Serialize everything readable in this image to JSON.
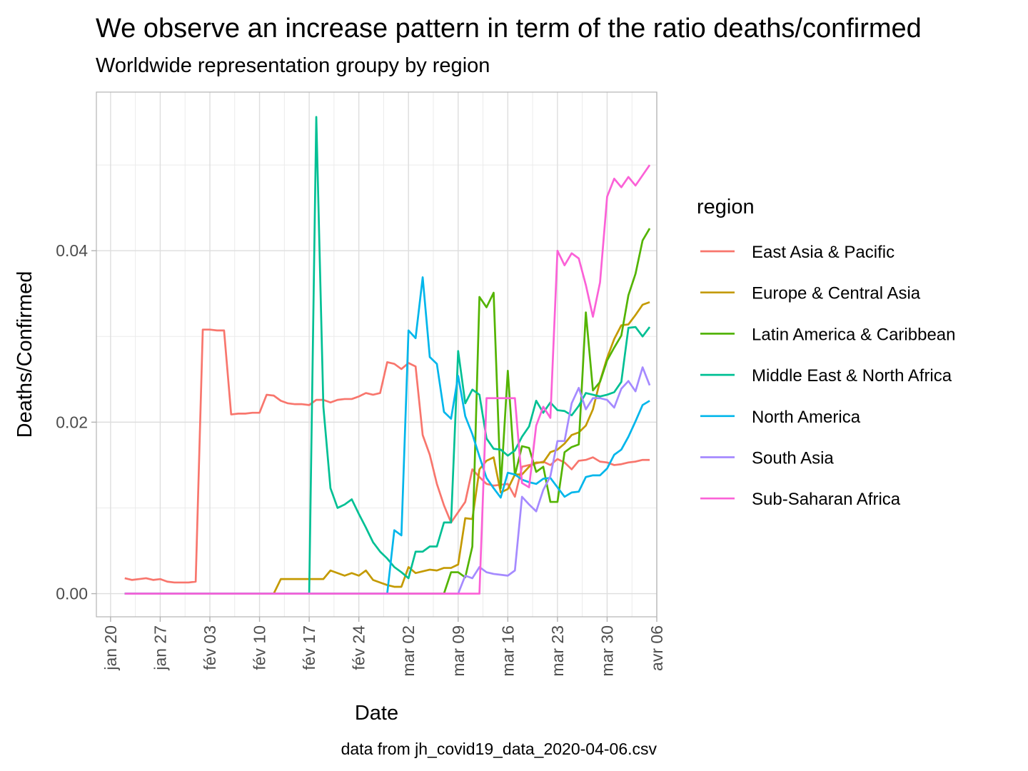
{
  "chart_data": {
    "type": "line",
    "title": "We observe an increase pattern in term of the ratio  deaths/confirmed",
    "subtitle": "Worldwide representation groupy by region",
    "xlabel": "Date",
    "ylabel": "Deaths/Confirmed",
    "caption": "data from jh_covid19_data_2020-04-06.csv",
    "legend_title": "region",
    "legend_position": "right",
    "grid": true,
    "x_type": "date",
    "xlim": [
      "2020-01-18",
      "2020-04-06"
    ],
    "ylim": [
      -0.0027,
      0.0585
    ],
    "x_ticks": [
      {
        "date": "2020-01-20",
        "label": "jan 20"
      },
      {
        "date": "2020-01-27",
        "label": "jan 27"
      },
      {
        "date": "2020-02-03",
        "label": "fév 03"
      },
      {
        "date": "2020-02-10",
        "label": "fév 10"
      },
      {
        "date": "2020-02-17",
        "label": "fév 17"
      },
      {
        "date": "2020-02-24",
        "label": "fév 24"
      },
      {
        "date": "2020-03-02",
        "label": "mar 02"
      },
      {
        "date": "2020-03-09",
        "label": "mar 09"
      },
      {
        "date": "2020-03-16",
        "label": "mar 16"
      },
      {
        "date": "2020-03-23",
        "label": "mar 23"
      },
      {
        "date": "2020-03-30",
        "label": "mar 30"
      },
      {
        "date": "2020-04-06",
        "label": "avr 06"
      }
    ],
    "y_ticks": [
      {
        "value": 0,
        "label": "0.00"
      },
      {
        "value": 0.02,
        "label": "0.02"
      },
      {
        "value": 0.04,
        "label": "0.04"
      }
    ],
    "x": [
      "2020-01-22",
      "2020-01-23",
      "2020-01-24",
      "2020-01-25",
      "2020-01-26",
      "2020-01-27",
      "2020-01-28",
      "2020-01-29",
      "2020-01-30",
      "2020-01-31",
      "2020-02-01",
      "2020-02-02",
      "2020-02-03",
      "2020-02-04",
      "2020-02-05",
      "2020-02-06",
      "2020-02-07",
      "2020-02-08",
      "2020-02-09",
      "2020-02-10",
      "2020-02-11",
      "2020-02-12",
      "2020-02-13",
      "2020-02-14",
      "2020-02-15",
      "2020-02-16",
      "2020-02-17",
      "2020-02-18",
      "2020-02-19",
      "2020-02-20",
      "2020-02-21",
      "2020-02-22",
      "2020-02-23",
      "2020-02-24",
      "2020-02-25",
      "2020-02-26",
      "2020-02-27",
      "2020-02-28",
      "2020-02-29",
      "2020-03-01",
      "2020-03-02",
      "2020-03-03",
      "2020-03-04",
      "2020-03-05",
      "2020-03-06",
      "2020-03-07",
      "2020-03-08",
      "2020-03-09",
      "2020-03-10",
      "2020-03-11",
      "2020-03-12",
      "2020-03-13",
      "2020-03-14",
      "2020-03-15",
      "2020-03-16",
      "2020-03-17",
      "2020-03-18",
      "2020-03-19",
      "2020-03-20",
      "2020-03-21",
      "2020-03-22",
      "2020-03-23",
      "2020-03-24",
      "2020-03-25",
      "2020-03-26",
      "2020-03-27",
      "2020-03-28",
      "2020-03-29",
      "2020-03-30",
      "2020-03-31",
      "2020-04-01",
      "2020-04-02",
      "2020-04-03",
      "2020-04-04",
      "2020-04-05"
    ],
    "series": [
      {
        "name": "East Asia & Pacific",
        "color": "#F8766D",
        "values": [
          0.0018,
          0.0016,
          0.0017,
          0.0018,
          0.0016,
          0.0017,
          0.0014,
          0.0013,
          0.0013,
          0.0013,
          0.0014,
          0.0308,
          0.0308,
          0.0307,
          0.0307,
          0.0209,
          0.021,
          0.021,
          0.0211,
          0.0211,
          0.0232,
          0.0231,
          0.0225,
          0.0222,
          0.0221,
          0.0221,
          0.022,
          0.0226,
          0.0226,
          0.0223,
          0.0226,
          0.0227,
          0.0227,
          0.023,
          0.0234,
          0.0232,
          0.0234,
          0.027,
          0.0268,
          0.0262,
          0.0269,
          0.0265,
          0.0185,
          0.0162,
          0.0128,
          0.0103,
          0.0083,
          0.0095,
          0.0107,
          0.0145,
          0.0136,
          0.0128,
          0.0126,
          0.0127,
          0.0128,
          0.0113,
          0.0148,
          0.015,
          0.0152,
          0.0154,
          0.015,
          0.0157,
          0.0153,
          0.0145,
          0.0155,
          0.0156,
          0.0159,
          0.0154,
          0.0153,
          0.015,
          0.0151,
          0.0153,
          0.0154,
          0.0156,
          0.0156
        ]
      },
      {
        "name": "Europe & Central Asia",
        "color": "#C49A00",
        "values": [
          0,
          0,
          0,
          0,
          0,
          0,
          0,
          0,
          0,
          0,
          0,
          0,
          0,
          0,
          0,
          0,
          0,
          0,
          0,
          0,
          0,
          0,
          0.0017,
          0.0017,
          0.0017,
          0.0017,
          0.0017,
          0.0017,
          0.0017,
          0.0027,
          0.0024,
          0.0021,
          0.0024,
          0.0021,
          0.0027,
          0.0016,
          0.0013,
          0.001,
          0.0008,
          0.0008,
          0.0031,
          0.0024,
          0.0026,
          0.0028,
          0.0027,
          0.003,
          0.003,
          0.0034,
          0.0088,
          0.0087,
          0.0145,
          0.0155,
          0.0159,
          0.0118,
          0.0122,
          0.0139,
          0.0139,
          0.0148,
          0.0153,
          0.0153,
          0.0165,
          0.0168,
          0.0175,
          0.0185,
          0.0188,
          0.0196,
          0.0215,
          0.0248,
          0.0275,
          0.0297,
          0.0313,
          0.0314,
          0.0325,
          0.0337,
          0.034
        ]
      },
      {
        "name": "Latin America & Caribbean",
        "color": "#53B400",
        "values": [
          0,
          0,
          0,
          0,
          0,
          0,
          0,
          0,
          0,
          0,
          0,
          0,
          0,
          0,
          0,
          0,
          0,
          0,
          0,
          0,
          0,
          0,
          0,
          0,
          0,
          0,
          0,
          0,
          0,
          0,
          0,
          0,
          0,
          0,
          0,
          0,
          0,
          0,
          0,
          0,
          0,
          0,
          0,
          0,
          0,
          0,
          0.0025,
          0.0025,
          0.0019,
          0.0055,
          0.0346,
          0.0334,
          0.0351,
          0.0123,
          0.026,
          0.0138,
          0.0172,
          0.017,
          0.0142,
          0.0148,
          0.0107,
          0.0107,
          0.0165,
          0.0171,
          0.0174,
          0.0328,
          0.0237,
          0.0247,
          0.0272,
          0.0287,
          0.0301,
          0.0348,
          0.0373,
          0.0412,
          0.0426
        ]
      },
      {
        "name": "Middle East & North Africa",
        "color": "#00C094",
        "values": [
          0,
          0,
          0,
          0,
          0,
          0,
          0,
          0,
          0,
          0,
          0,
          0,
          0,
          0,
          0,
          0,
          0,
          0,
          0,
          0,
          0,
          0,
          0,
          0,
          0,
          0,
          0,
          0.0556,
          0.0218,
          0.0123,
          0.01,
          0.0104,
          0.011,
          0.0093,
          0.0077,
          0.006,
          0.0049,
          0.0041,
          0.0031,
          0.0025,
          0.0018,
          0.0049,
          0.0049,
          0.0055,
          0.0055,
          0.0083,
          0.0083,
          0.0283,
          0.0222,
          0.0238,
          0.0232,
          0.0181,
          0.0169,
          0.0168,
          0.0161,
          0.0167,
          0.0183,
          0.0195,
          0.0225,
          0.0211,
          0.0223,
          0.0214,
          0.0213,
          0.0208,
          0.0219,
          0.0234,
          0.0232,
          0.023,
          0.0232,
          0.0235,
          0.0247,
          0.031,
          0.0311,
          0.03,
          0.0311
        ]
      },
      {
        "name": "North America",
        "color": "#00B6EB",
        "values": [
          0,
          0,
          0,
          0,
          0,
          0,
          0,
          0,
          0,
          0,
          0,
          0,
          0,
          0,
          0,
          0,
          0,
          0,
          0,
          0,
          0,
          0,
          0,
          0,
          0,
          0,
          0,
          0,
          0,
          0,
          0,
          0,
          0,
          0,
          0,
          0,
          0,
          0,
          0.0074,
          0.0068,
          0.0307,
          0.0298,
          0.0369,
          0.0276,
          0.0268,
          0.0212,
          0.0204,
          0.0254,
          0.0207,
          0.0186,
          0.016,
          0.0135,
          0.0123,
          0.0112,
          0.0141,
          0.0139,
          0.0133,
          0.013,
          0.0128,
          0.0134,
          0.0135,
          0.0124,
          0.0113,
          0.0118,
          0.0119,
          0.0136,
          0.0138,
          0.0138,
          0.0146,
          0.0162,
          0.0168,
          0.0183,
          0.0201,
          0.022,
          0.0225
        ]
      },
      {
        "name": "South Asia",
        "color": "#A58AFF",
        "values": [
          0,
          0,
          0,
          0,
          0,
          0,
          0,
          0,
          0,
          0,
          0,
          0,
          0,
          0,
          0,
          0,
          0,
          0,
          0,
          0,
          0,
          0,
          0,
          0,
          0,
          0,
          0,
          0,
          0,
          0,
          0,
          0,
          0,
          0,
          0,
          0,
          0,
          0,
          0,
          0,
          0,
          0,
          0,
          0,
          0,
          0,
          0,
          0,
          0.0021,
          0.0018,
          0.0031,
          0.0025,
          0.0023,
          0.0022,
          0.0021,
          0.0027,
          0.0113,
          0.0104,
          0.0096,
          0.0121,
          0.0137,
          0.0178,
          0.0178,
          0.0222,
          0.024,
          0.0215,
          0.0228,
          0.0228,
          0.0226,
          0.0217,
          0.0239,
          0.0248,
          0.0236,
          0.0264,
          0.0243
        ]
      },
      {
        "name": "Sub-Saharan Africa",
        "color": "#FB61D7",
        "values": [
          0,
          0,
          0,
          0,
          0,
          0,
          0,
          0,
          0,
          0,
          0,
          0,
          0,
          0,
          0,
          0,
          0,
          0,
          0,
          0,
          0,
          0,
          0,
          0,
          0,
          0,
          0,
          0,
          0,
          0,
          0,
          0,
          0,
          0,
          0,
          0,
          0,
          0,
          0,
          0,
          0,
          0,
          0,
          0,
          0,
          0,
          0,
          0,
          0,
          0,
          0,
          0.0228,
          0.0228,
          0.0228,
          0.0228,
          0.0228,
          0.0129,
          0.0124,
          0.0196,
          0.0218,
          0.0205,
          0.04,
          0.0383,
          0.0397,
          0.0391,
          0.036,
          0.0323,
          0.0363,
          0.0463,
          0.0484,
          0.0474,
          0.0486,
          0.0476,
          0.0488,
          0.05
        ]
      }
    ]
  }
}
